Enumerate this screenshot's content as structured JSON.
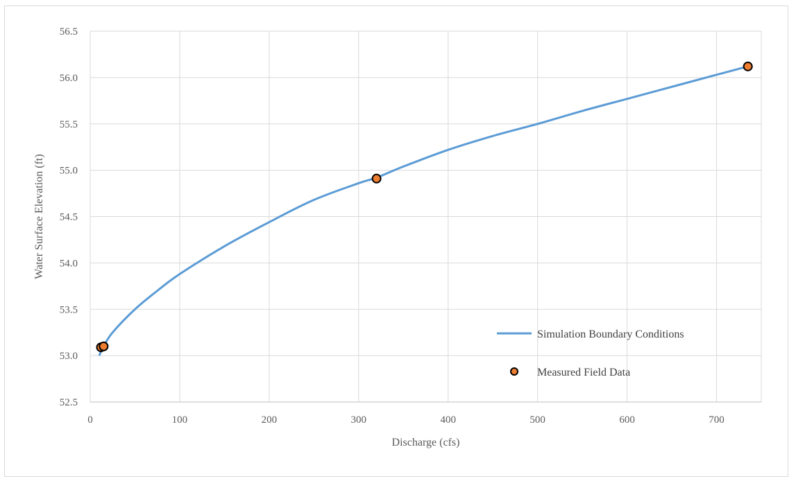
{
  "chart_data": {
    "type": "scatter",
    "title": "",
    "xlabel": "Discharge (cfs)",
    "ylabel": "Water Surface Elevation (ft)",
    "xlim": [
      0,
      750
    ],
    "ylim": [
      52.5,
      56.5
    ],
    "x_ticks": [
      "0",
      "100",
      "200",
      "300",
      "400",
      "500",
      "600",
      "700"
    ],
    "y_ticks": [
      "52.5",
      "53.0",
      "53.5",
      "54.0",
      "54.5",
      "55.0",
      "55.5",
      "56.0",
      "56.5"
    ],
    "grid": true,
    "legend_position": "bottom-right",
    "series": [
      {
        "name": "Simulation Boundary Conditions",
        "kind": "line",
        "color": "#5b9bd5",
        "x": [
          10,
          15,
          25,
          50,
          75,
          100,
          150,
          200,
          250,
          300,
          320,
          350,
          400,
          450,
          500,
          550,
          600,
          650,
          700,
          735
        ],
        "y": [
          53.0,
          53.1,
          53.25,
          53.5,
          53.7,
          53.88,
          54.18,
          54.44,
          54.68,
          54.86,
          54.92,
          55.04,
          55.22,
          55.37,
          55.5,
          55.64,
          55.77,
          55.9,
          56.03,
          56.12
        ]
      },
      {
        "name": "Measured Field Data",
        "kind": "scatter",
        "color": "#ed7d31",
        "edge_color": "#000000",
        "x": [
          12,
          15,
          320,
          735
        ],
        "y": [
          53.09,
          53.1,
          54.91,
          56.12
        ]
      }
    ]
  }
}
